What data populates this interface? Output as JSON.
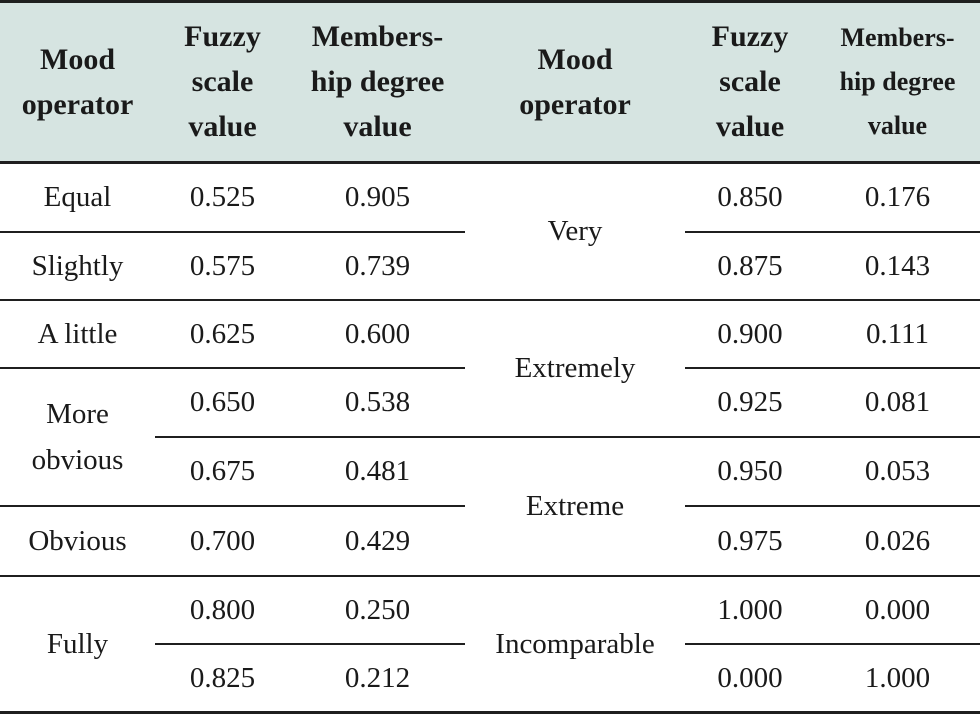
{
  "headers": {
    "mood_operator": "Mood\noperator",
    "fuzzy_scale": "Fuzzy\nscale\nvalue",
    "membership_left": "Members-\nhip degree\nvalue",
    "mood_operator_2": "Mood\noperator",
    "fuzzy_scale_2": "Fuzzy\nscale\nvalue",
    "membership_right": "Members-\nhip degree\nvalue"
  },
  "left": {
    "ops": {
      "equal": "Equal",
      "slightly": "Slightly",
      "a_little": "A little",
      "more_obvious": "More\nobvious",
      "obvious": "Obvious",
      "fully": "Fully"
    },
    "rows": [
      {
        "fuzzy": "0.525",
        "member": "0.905"
      },
      {
        "fuzzy": "0.575",
        "member": "0.739"
      },
      {
        "fuzzy": "0.625",
        "member": "0.600"
      },
      {
        "fuzzy": "0.650",
        "member": "0.538"
      },
      {
        "fuzzy": "0.675",
        "member": "0.481"
      },
      {
        "fuzzy": "0.700",
        "member": "0.429"
      },
      {
        "fuzzy": "0.800",
        "member": "0.250"
      },
      {
        "fuzzy": "0.825",
        "member": "0.212"
      }
    ]
  },
  "right": {
    "ops": {
      "very": "Very",
      "extremely": "Extremely",
      "extreme": "Extreme",
      "incomparable": "Incomparable"
    },
    "rows": [
      {
        "fuzzy": "0.850",
        "member": "0.176"
      },
      {
        "fuzzy": "0.875",
        "member": "0.143"
      },
      {
        "fuzzy": "0.900",
        "member": "0.111"
      },
      {
        "fuzzy": "0.925",
        "member": "0.081"
      },
      {
        "fuzzy": "0.950",
        "member": "0.053"
      },
      {
        "fuzzy": "0.975",
        "member": "0.026"
      },
      {
        "fuzzy": "1.000",
        "member": "0.000"
      },
      {
        "fuzzy": "0.000",
        "member": "1.000"
      }
    ]
  }
}
